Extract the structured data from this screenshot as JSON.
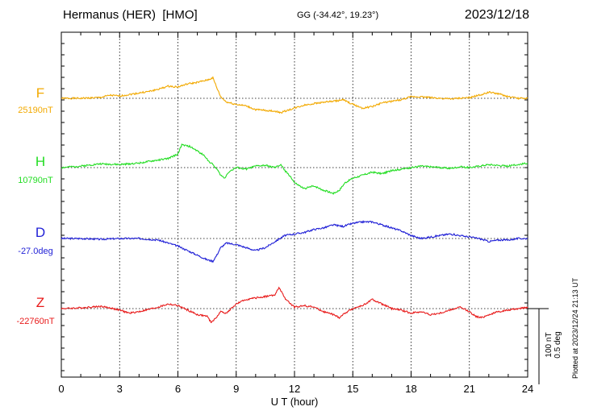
{
  "header": {
    "station": "Hermanus (HER)",
    "code": "[HMO]",
    "coords": "GG (-34.42°,  19.23°)",
    "date": "2023/12/18"
  },
  "plotted_note": "Plotted at 2023/12/24 21:13 UT",
  "chart_data": {
    "type": "line",
    "xlabel": "U T (hour)",
    "xlim": [
      0,
      24
    ],
    "xticks": [
      "0",
      "3",
      "6",
      "9",
      "12",
      "15",
      "18",
      "21",
      "24"
    ],
    "grid": true,
    "scale_bar": {
      "nt_label": "100 nT",
      "deg_label": "0.5 deg"
    },
    "series": [
      {
        "name": "F",
        "baseline_label": "25190nT",
        "baseline": 25190,
        "unit": "nT",
        "color": "#f2a900",
        "x": [
          0,
          1,
          2,
          2.5,
          3,
          3.5,
          4,
          4.5,
          5,
          5.5,
          6,
          6.5,
          7,
          7.5,
          7.8,
          8,
          8.2,
          8.5,
          9,
          9.5,
          10,
          10.5,
          11,
          11.3,
          11.5,
          12,
          12.5,
          13,
          13.5,
          14,
          14.5,
          15,
          15.5,
          16,
          16.5,
          17,
          17.5,
          18,
          18.5,
          19,
          19.5,
          20,
          20.5,
          21,
          21.5,
          22,
          22.5,
          23,
          23.5,
          24
        ],
        "values": [
          0,
          0,
          1,
          4,
          3,
          5,
          7,
          9,
          12,
          16,
          15,
          19,
          21,
          24,
          27,
          14,
          2,
          -5,
          -8,
          -10,
          -15,
          -16,
          -17,
          -19,
          -17,
          -13,
          -9,
          -7,
          -5,
          -4,
          -2,
          -8,
          -13,
          -11,
          -6,
          -4,
          -2,
          2,
          2,
          1,
          0,
          -1,
          0,
          1,
          4,
          8,
          6,
          2,
          0,
          0
        ]
      },
      {
        "name": "H",
        "baseline_label": "10790nT",
        "baseline": 10790,
        "unit": "nT",
        "color": "#22dd22",
        "x": [
          0,
          1,
          2,
          3,
          4,
          4.5,
          5,
          5.5,
          6,
          6.2,
          6.6,
          7,
          7.4,
          7.6,
          7.8,
          8,
          8.2,
          8.4,
          8.6,
          9,
          9.5,
          10,
          10.5,
          11,
          11.3,
          11.5,
          11.8,
          12,
          12.5,
          13,
          13.5,
          14,
          14.3,
          14.6,
          15,
          15.5,
          16,
          16.5,
          17,
          17.5,
          18,
          18.5,
          19,
          19.5,
          20,
          20.5,
          21,
          21.5,
          22,
          22.5,
          23,
          23.5,
          24
        ],
        "values": [
          0,
          2,
          5,
          4,
          6,
          8,
          10,
          12,
          18,
          30,
          28,
          22,
          15,
          8,
          4,
          -2,
          -10,
          -14,
          -6,
          0,
          -2,
          2,
          3,
          0,
          4,
          -4,
          -12,
          -20,
          -28,
          -24,
          -30,
          -34,
          -30,
          -20,
          -14,
          -10,
          -6,
          -8,
          -4,
          -2,
          0,
          2,
          1,
          0,
          -1,
          1,
          0,
          2,
          4,
          3,
          2,
          4,
          6
        ]
      },
      {
        "name": "D",
        "baseline_label": "-27.0deg",
        "baseline": -27.0,
        "unit": "deg",
        "color": "#1f1fd6",
        "x": [
          0,
          1,
          2,
          3,
          4,
          5,
          5.5,
          6,
          6.5,
          7,
          7.5,
          7.8,
          8,
          8.2,
          8.5,
          9,
          9.5,
          10,
          10.5,
          11,
          11.5,
          12,
          12.5,
          13,
          13.5,
          14,
          14.5,
          15,
          15.5,
          16,
          16.5,
          17,
          17.5,
          18,
          18.5,
          19,
          19.5,
          20,
          20.5,
          21,
          21.5,
          22,
          22.5,
          23,
          23.5,
          24
        ],
        "values": [
          0,
          0,
          -1,
          0,
          0,
          -2,
          -6,
          -10,
          -16,
          -22,
          -28,
          -30,
          -22,
          -12,
          -6,
          -8,
          -12,
          -16,
          -12,
          -4,
          4,
          6,
          8,
          12,
          14,
          18,
          16,
          20,
          22,
          22,
          18,
          14,
          10,
          4,
          0,
          2,
          4,
          6,
          4,
          2,
          0,
          -4,
          -2,
          -2,
          0,
          0
        ]
      },
      {
        "name": "Z",
        "baseline_label": "-22760nT",
        "baseline": -22760,
        "unit": "nT",
        "color": "#e81a1a",
        "x": [
          0,
          1,
          2,
          2.5,
          3,
          3.5,
          4,
          4.5,
          5,
          5.5,
          6,
          6.5,
          7,
          7.5,
          7.7,
          7.9,
          8.2,
          8.5,
          9,
          9.5,
          10,
          10.5,
          11,
          11.2,
          11.5,
          11.8,
          12,
          12.5,
          13,
          13.5,
          14,
          14.3,
          14.6,
          15,
          15.5,
          16,
          16.5,
          17,
          17.5,
          18,
          18.5,
          19,
          19.5,
          20,
          20.5,
          21,
          21.3,
          21.6,
          22,
          22.5,
          23,
          23.5,
          24
        ],
        "values": [
          0,
          1,
          3,
          1,
          -2,
          -6,
          -4,
          -1,
          2,
          6,
          4,
          -2,
          -8,
          -10,
          -18,
          -14,
          -4,
          -6,
          6,
          12,
          14,
          16,
          18,
          28,
          14,
          6,
          2,
          4,
          2,
          -4,
          -8,
          -12,
          -6,
          0,
          4,
          12,
          6,
          0,
          -2,
          -6,
          -4,
          -8,
          -6,
          -2,
          2,
          -4,
          -10,
          -12,
          -8,
          -4,
          -2,
          0,
          2
        ]
      }
    ]
  }
}
